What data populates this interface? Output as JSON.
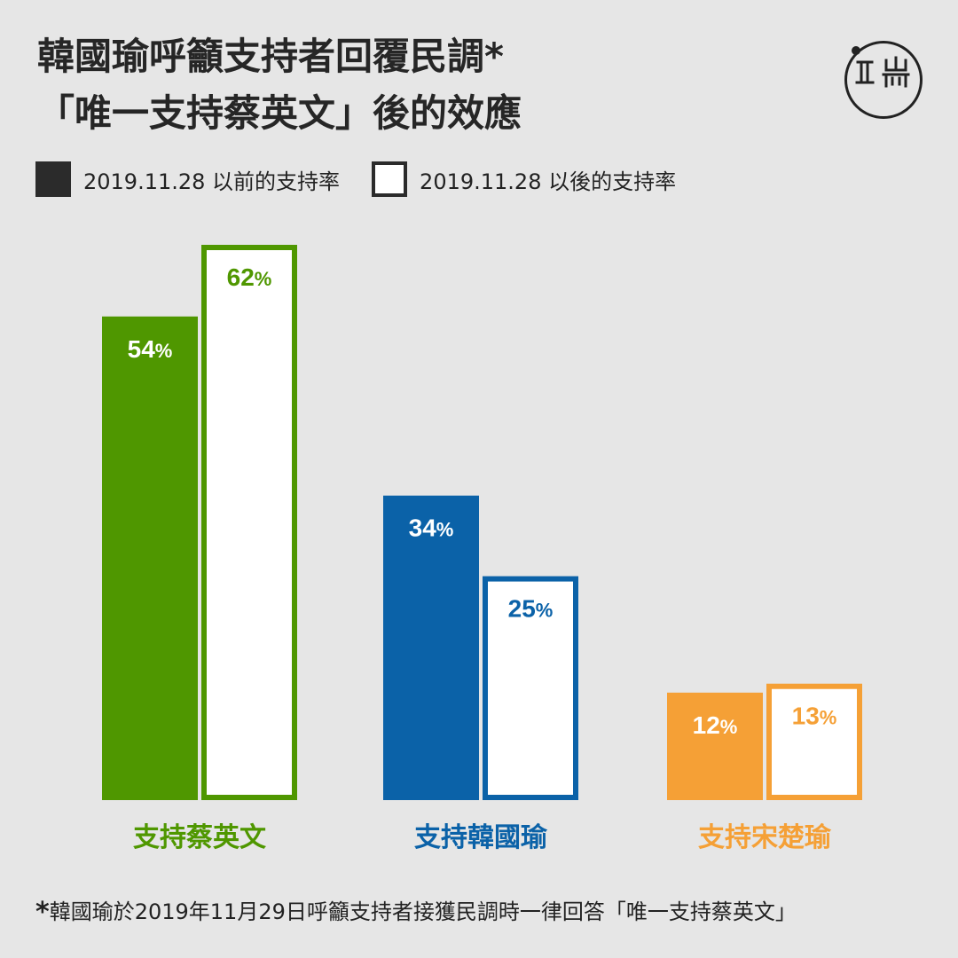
{
  "title": {
    "line1": "韓國瑜呼籲支持者回覆民調*",
    "line2": "「唯一支持蔡英文」後的效應"
  },
  "legend": {
    "before": "2019.11.28 以前的支持率",
    "after": "2019.11.28 以後的支持率"
  },
  "footnote": {
    "star": "*",
    "text": "韓國瑜於2019年11月29日呼籲支持者接獲民調時一律回答「唯一支持蔡英文」"
  },
  "logo": {
    "name": "theinitium-logo"
  },
  "colors": {
    "background": "#e6e6e6",
    "legend_dark": "#2b2b2b",
    "green": "#4f9700",
    "blue": "#0b62a8",
    "orange": "#f5a036"
  },
  "chart_data": {
    "type": "bar",
    "categories": [
      "支持蔡英文",
      "支持韓國瑜",
      "支持宋楚瑜"
    ],
    "category_colors": [
      "#4f9700",
      "#0b62a8",
      "#f5a036"
    ],
    "series": [
      {
        "name": "2019.11.28 以前的支持率",
        "style": "filled",
        "values": [
          54,
          34,
          12
        ]
      },
      {
        "name": "2019.11.28 以後的支持率",
        "style": "outlined",
        "values": [
          62,
          25,
          13
        ]
      }
    ],
    "value_suffix": "%",
    "ylim": [
      0,
      62
    ],
    "grid": false,
    "legend_position": "top-left"
  }
}
